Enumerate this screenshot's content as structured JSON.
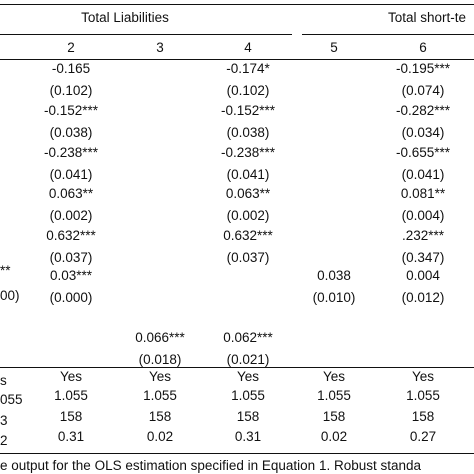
{
  "header": {
    "groups": [
      "Total Liabilities",
      "Total short-te"
    ],
    "columns": [
      "2",
      "3",
      "4",
      "5",
      "6"
    ]
  },
  "rows": [
    [
      "-0.165",
      "",
      "-0.174*",
      "",
      "-0.195***"
    ],
    [
      "(0.102)",
      "",
      "(0.102)",
      "",
      "(0.074)"
    ],
    [
      "-0.152***",
      "",
      "-0.152***",
      "",
      "-0.282***"
    ],
    [
      "(0.038)",
      "",
      "(0.038)",
      "",
      "(0.034)"
    ],
    [
      "-0.238***",
      "",
      "-0.238***",
      "",
      "-0.655***"
    ],
    [
      "(0.041)",
      "",
      "(0.041)",
      "",
      "(0.041)"
    ],
    [
      "0.063**",
      "",
      "0.063**",
      "",
      "0.081**"
    ],
    [
      "(0.002)",
      "",
      "(0.002)",
      "",
      "(0.004)"
    ],
    [
      "0.632***",
      "",
      "0.632***",
      "",
      ".232***"
    ],
    [
      "(0.037)",
      "",
      "(0.037)",
      "",
      "(0.347)"
    ],
    [
      "0.03***",
      "",
      "",
      "0.038",
      "0.004"
    ],
    [
      "(0.000)",
      "",
      "",
      "(0.010)",
      "(0.012)"
    ],
    [
      "",
      "",
      "",
      "",
      ""
    ],
    [
      "",
      "0.066***",
      "0.062***",
      "",
      ""
    ],
    [
      "",
      "(0.018)",
      "(0.021)",
      "",
      ""
    ]
  ],
  "left_edge": [
    "**",
    "00)"
  ],
  "footer": {
    "left_edge": [
      "s",
      "055",
      "3",
      "2"
    ],
    "rows": [
      [
        "Yes",
        "Yes",
        "Yes",
        "Yes",
        "Yes"
      ],
      [
        "1.055",
        "1.055",
        "1.055",
        "1.055",
        "1.055"
      ],
      [
        "158",
        "158",
        "158",
        "158",
        "158"
      ],
      [
        "0.31",
        "0.02",
        "0.31",
        "0.02",
        "0.27"
      ]
    ]
  },
  "note": "e output for the OLS estimation specified in Equation 1. Robust standa"
}
